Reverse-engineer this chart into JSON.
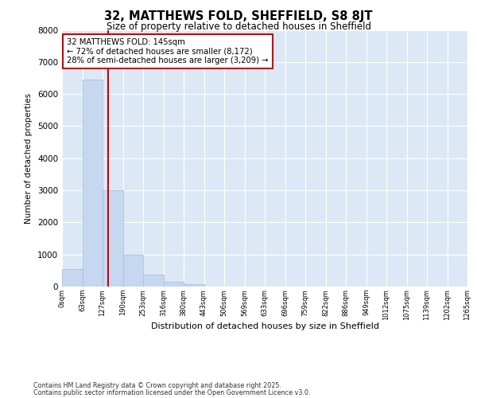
{
  "title": "32, MATTHEWS FOLD, SHEFFIELD, S8 8JT",
  "subtitle": "Size of property relative to detached houses in Sheffield",
  "xlabel": "Distribution of detached houses by size in Sheffield",
  "ylabel": "Number of detached properties",
  "bin_labels": [
    "0sqm",
    "63sqm",
    "127sqm",
    "190sqm",
    "253sqm",
    "316sqm",
    "380sqm",
    "443sqm",
    "506sqm",
    "569sqm",
    "633sqm",
    "696sqm",
    "759sqm",
    "822sqm",
    "886sqm",
    "949sqm",
    "1012sqm",
    "1075sqm",
    "1139sqm",
    "1202sqm",
    "1265sqm"
  ],
  "bar_values": [
    550,
    6450,
    3000,
    1000,
    380,
    160,
    75,
    10,
    0,
    0,
    0,
    0,
    0,
    0,
    0,
    0,
    0,
    0,
    0,
    0
  ],
  "bar_color": "#c5d8ef",
  "bar_edge_color": "#a0bcd8",
  "red_line_x": 2.286,
  "annotation_text": "32 MATTHEWS FOLD: 145sqm\n← 72% of detached houses are smaller (8,172)\n28% of semi-detached houses are larger (3,209) →",
  "annotation_box_color": "#ffffff",
  "annotation_box_edge": "#cc0000",
  "vline_color": "#cc0000",
  "ylim": [
    0,
    8000
  ],
  "yticks": [
    0,
    1000,
    2000,
    3000,
    4000,
    5000,
    6000,
    7000,
    8000
  ],
  "bg_color": "#dce8f5",
  "footer1": "Contains HM Land Registry data © Crown copyright and database right 2025.",
  "footer2": "Contains public sector information licensed under the Open Government Licence v3.0."
}
